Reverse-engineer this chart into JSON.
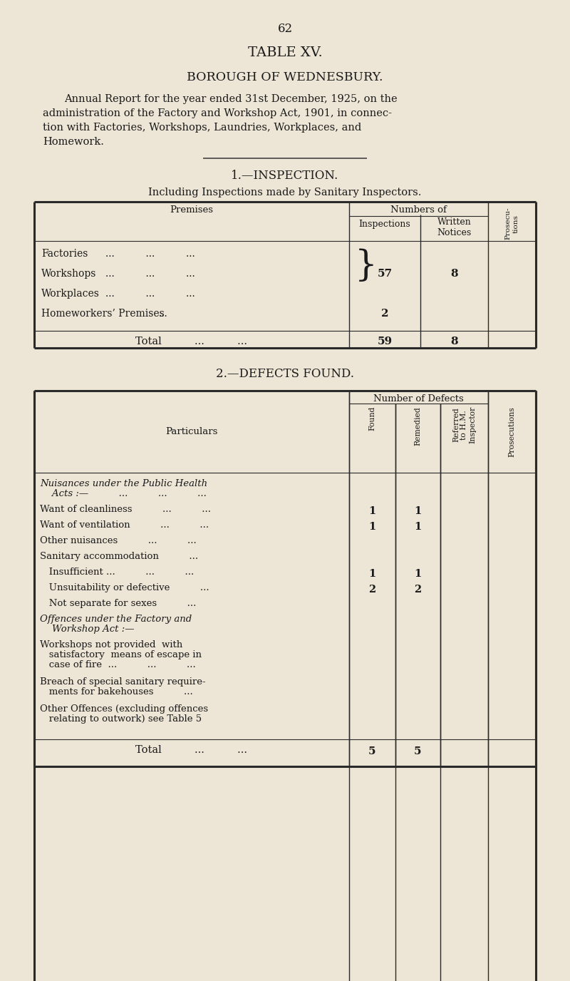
{
  "bg_color": "#ede5d5",
  "text_color": "#1a1a1a",
  "page_number": "62",
  "title": "TABLE XV.",
  "subtitle": "BOROUGH OF WEDNESBURY.",
  "desc_lines": [
    "Annual Report for the year ended 31st December, 1925, on the",
    "administration of the Factory and Workshop Act, 1901, in connec-",
    "tion with Factories, Workshops, Laundries, Workplaces, and",
    "Homework."
  ],
  "section1_title": "1.—INSPECTION.",
  "section1_subtitle": "Including Inspections made by Sanitary Inspectors.",
  "section2_title": "2.—DEFECTS FOUND.",
  "t1_rows": [
    {
      "label": "Factories",
      "dots": "...          ...          ...",
      "insp": "",
      "notices": "",
      "group": true
    },
    {
      "label": "Workshops",
      "dots": "...          ...          ...",
      "insp": "57",
      "notices": "8",
      "group": true
    },
    {
      "label": "Workplaces",
      "dots": "...          ...          ...",
      "insp": "",
      "notices": "",
      "group": true
    },
    {
      "label": "Homeworkers’ Premises",
      "dots": "...",
      "insp": "2",
      "notices": "",
      "group": false
    }
  ],
  "t1_total": {
    "insp": "59",
    "notices": "8"
  },
  "t2_rows": [
    {
      "label": "Nuisances under the Public Health",
      "label2": "    Acts :—          ...          ...          ...",
      "italic": true,
      "found": "",
      "remedied": ""
    },
    {
      "label": "Want of cleanliness          ...          ...",
      "label2": "",
      "italic": false,
      "found": "1",
      "remedied": "1"
    },
    {
      "label": "Want of ventilation          ...          ...",
      "label2": "",
      "italic": false,
      "found": "1",
      "remedied": "1"
    },
    {
      "label": "Other nuisances          ...          ...",
      "label2": "",
      "italic": false,
      "found": "",
      "remedied": ""
    },
    {
      "label": "Sanitary accommodation          ...",
      "label2": "",
      "italic": false,
      "found": "",
      "remedied": ""
    },
    {
      "label": "   Insufficient ...          ...          ...",
      "label2": "",
      "italic": false,
      "found": "1",
      "remedied": "1"
    },
    {
      "label": "   Unsuitability or defective          ...",
      "label2": "",
      "italic": false,
      "found": "2",
      "remedied": "2"
    },
    {
      "label": "   Not separate for sexes          ...",
      "label2": "",
      "italic": false,
      "found": "",
      "remedied": ""
    },
    {
      "label": "Offences under the Factory and",
      "label2": "    Workshop Act :—",
      "italic": true,
      "found": "",
      "remedied": ""
    },
    {
      "label": "Workshops not provided  with",
      "label2": "   satisfactory  means of escape in",
      "label3": "   case of fire  ...          ...          ...",
      "italic": false,
      "found": "",
      "remedied": ""
    },
    {
      "label": "Breach of special sanitary require-",
      "label2": "   ments for bakehouses          ...",
      "italic": false,
      "found": "",
      "remedied": ""
    },
    {
      "label": "Other Offences (excluding offences",
      "label2": "   relating to outwork) see Table 5",
      "italic": false,
      "found": "",
      "remedied": ""
    }
  ],
  "t2_total": {
    "found": "5",
    "remedied": "5"
  }
}
